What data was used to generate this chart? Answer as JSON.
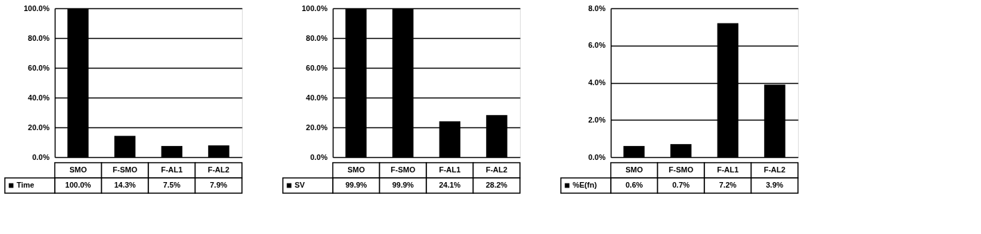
{
  "chart_data": [
    {
      "type": "bar",
      "categories": [
        "SMO",
        "F-SMO",
        "F-AL1",
        "F-AL2"
      ],
      "series": [
        {
          "name": "Time",
          "color": "#000000",
          "values": [
            100.0,
            14.3,
            7.5,
            7.9
          ],
          "value_labels": [
            "100.0%",
            "14.3%",
            "7.5%",
            "7.9%"
          ]
        }
      ],
      "ylim": [
        0,
        100
      ],
      "yticks": [
        {
          "value": 0,
          "label": "0.0%"
        },
        {
          "value": 20,
          "label": "20.0%"
        },
        {
          "value": 40,
          "label": "40.0%"
        },
        {
          "value": 60,
          "label": "60.0%"
        },
        {
          "value": 80,
          "label": "80.0%"
        },
        {
          "value": 100,
          "label": "100.0%"
        }
      ],
      "grid": "y",
      "legend": "bottom"
    },
    {
      "type": "bar",
      "categories": [
        "SMO",
        "F-SMO",
        "F-AL1",
        "F-AL2"
      ],
      "series": [
        {
          "name": "SV",
          "color": "#000000",
          "values": [
            99.9,
            99.9,
            24.1,
            28.2
          ],
          "value_labels": [
            "99.9%",
            "99.9%",
            "24.1%",
            "28.2%"
          ]
        }
      ],
      "ylim": [
        0,
        100
      ],
      "yticks": [
        {
          "value": 0,
          "label": "0.0%"
        },
        {
          "value": 20,
          "label": "20.0%"
        },
        {
          "value": 40,
          "label": "40.0%"
        },
        {
          "value": 60,
          "label": "60.0%"
        },
        {
          "value": 80,
          "label": "80.0%"
        },
        {
          "value": 100,
          "label": "100.0%"
        }
      ],
      "grid": "y",
      "legend": "bottom"
    },
    {
      "type": "bar",
      "categories": [
        "SMO",
        "F-SMO",
        "F-AL1",
        "F-AL2"
      ],
      "series": [
        {
          "name": "%E(fn)",
          "color": "#000000",
          "values": [
            0.6,
            0.7,
            7.2,
            3.9
          ],
          "value_labels": [
            "0.6%",
            "0.7%",
            "7.2%",
            "3.9%"
          ]
        }
      ],
      "ylim": [
        0,
        8
      ],
      "yticks": [
        {
          "value": 0,
          "label": "0.0%"
        },
        {
          "value": 2,
          "label": "2.0%"
        },
        {
          "value": 4,
          "label": "4.0%"
        },
        {
          "value": 6,
          "label": "6.0%"
        },
        {
          "value": 8,
          "label": "8.0%"
        }
      ],
      "grid": "y",
      "legend": "bottom"
    }
  ]
}
